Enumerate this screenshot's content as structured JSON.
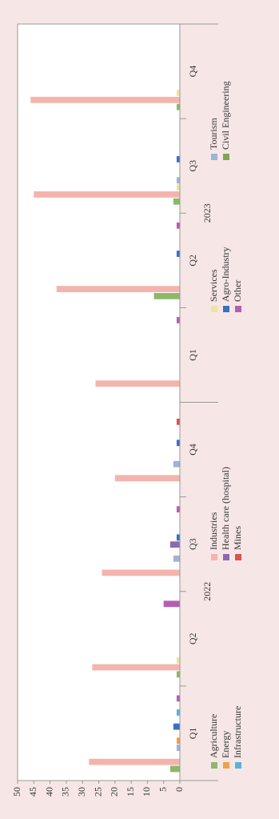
{
  "chart_data": {
    "type": "bar",
    "categories": [
      "Q1",
      "Q2",
      "Q3",
      "Q4",
      "Q1",
      "Q2",
      "Q3",
      "Q4"
    ],
    "years": [
      "2022",
      "2023"
    ],
    "ylim": [
      0,
      50
    ],
    "yticks": [
      0,
      5,
      10,
      15,
      20,
      25,
      30,
      35,
      40,
      45,
      50
    ],
    "series": [
      {
        "name": "Agriculture",
        "color": "#8db86a",
        "values": [
          3,
          1,
          0,
          0,
          0,
          8,
          2,
          1
        ]
      },
      {
        "name": "Industries",
        "color": "#f4b4ae",
        "values": [
          28,
          27,
          24,
          20,
          26,
          38,
          45,
          46
        ]
      },
      {
        "name": "Services",
        "color": "#efe3a0",
        "values": [
          0,
          1,
          0,
          0,
          0,
          0,
          1,
          1
        ]
      },
      {
        "name": "Tourism",
        "color": "#9db3d9",
        "values": [
          1,
          0,
          2,
          2,
          0,
          0,
          1,
          0
        ]
      },
      {
        "name": "Energy",
        "color": "#f0a04b",
        "values": [
          1,
          0,
          0,
          0,
          0,
          0,
          0,
          0
        ]
      },
      {
        "name": "Health care (hospital)",
        "color": "#8a6bb0",
        "values": [
          0,
          0,
          3,
          0,
          0,
          0,
          0,
          0
        ]
      },
      {
        "name": "Agro-Industry",
        "color": "#3c6fc0",
        "values": [
          2,
          0,
          1,
          1,
          0,
          1,
          1,
          0
        ]
      },
      {
        "name": "Civil Engineering",
        "color": "#7da653",
        "values": [
          0,
          0,
          0,
          0,
          0,
          0,
          0,
          0
        ]
      },
      {
        "name": "Infrastructure",
        "color": "#5bb2d9",
        "values": [
          1,
          0,
          0,
          0,
          0,
          0,
          0,
          0
        ]
      },
      {
        "name": "Mines",
        "color": "#d9534f",
        "values": [
          0,
          0,
          0,
          1,
          0,
          0,
          0,
          0
        ]
      },
      {
        "name": "Other",
        "color": "#b45fb4",
        "values": [
          1,
          5,
          1,
          0,
          1,
          1,
          0,
          0
        ]
      }
    ]
  }
}
